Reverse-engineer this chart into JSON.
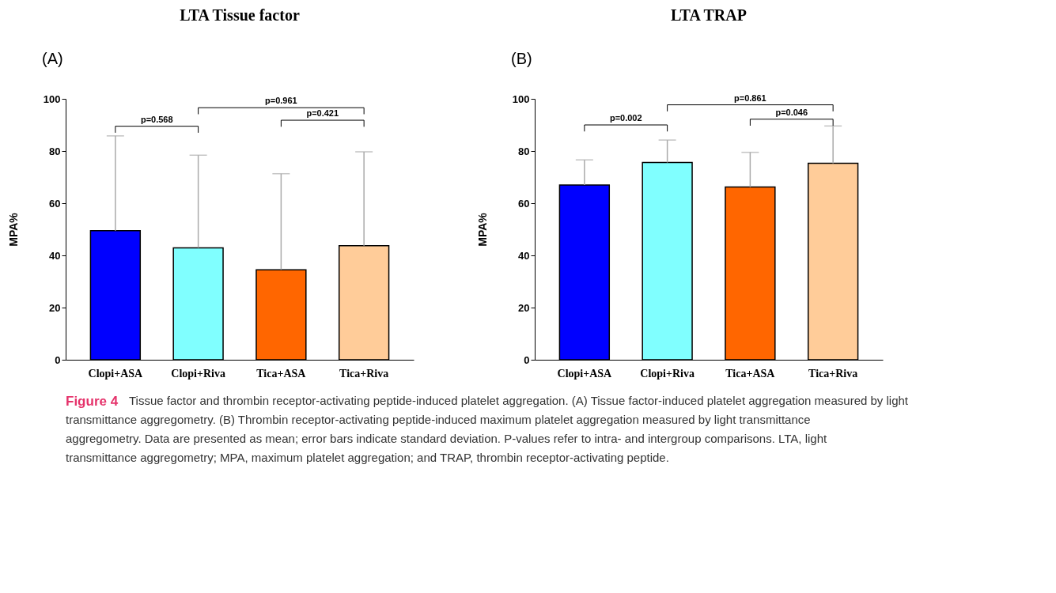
{
  "chart_data": [
    {
      "type": "bar",
      "title": "LTA Tissue factor",
      "ylabel": "MPA%",
      "categories": [
        "Clopi+ASA",
        "Clopi+Riva",
        "Tica+ASA",
        "Tica+Riva"
      ],
      "values": [
        49.5,
        42.9,
        34.5,
        43.7
      ],
      "colors": [
        "#0000ff",
        "#80ffff",
        "#ff6600",
        "#ffcc99"
      ],
      "errors": [
        [
          49.5,
          85.8
        ],
        [
          42.9,
          78.4
        ],
        [
          34.5,
          71.3
        ],
        [
          43.7,
          79.7
        ]
      ],
      "ylim": [
        0,
        100
      ],
      "yticks": [
        0,
        20,
        40,
        60,
        80,
        100
      ],
      "grid": false,
      "annotations": [
        "(A)",
        "p=0.568",
        "p=0.961",
        "p=0.421"
      ]
    },
    {
      "type": "bar",
      "title": "LTA TRAP",
      "ylabel": "MPA%",
      "categories": [
        "Clopi+ASA",
        "Clopi+Riva",
        "Tica+ASA",
        "Tica+Riva"
      ],
      "values": [
        67.0,
        75.6,
        66.2,
        75.3
      ],
      "colors": [
        "#0000ff",
        "#80ffff",
        "#ff6600",
        "#ffcc99"
      ],
      "errors": [
        [
          67.0,
          76.6
        ],
        [
          75.6,
          84.2
        ],
        [
          66.2,
          79.5
        ],
        [
          75.3,
          89.6
        ]
      ],
      "ylim": [
        0,
        100
      ],
      "yticks": [
        0,
        20,
        40,
        60,
        80,
        100
      ],
      "grid": false,
      "annotations": [
        "(B)",
        "p=0.002",
        "p=0.861",
        "p=0.046",
        "Figure 4",
        "Tissue factor and thrombin receptor-activating peptide-induced platelet aggregation. (A) Tissue factor-induced platelet aggregation measured by light transmittance aggregometry. (B) Thrombin receptor-activating peptide-induced maximum platelet aggregation measured by light transmittance aggregometry. Data are presented as mean; error bars indicate standard deviation. P-values refer to intra- and intergroup comparisons. LTA, light transmittance aggregometry; MPA, maximum platelet aggregation; and TRAP, thrombin receptor-activating peptide."
      ]
    }
  ]
}
